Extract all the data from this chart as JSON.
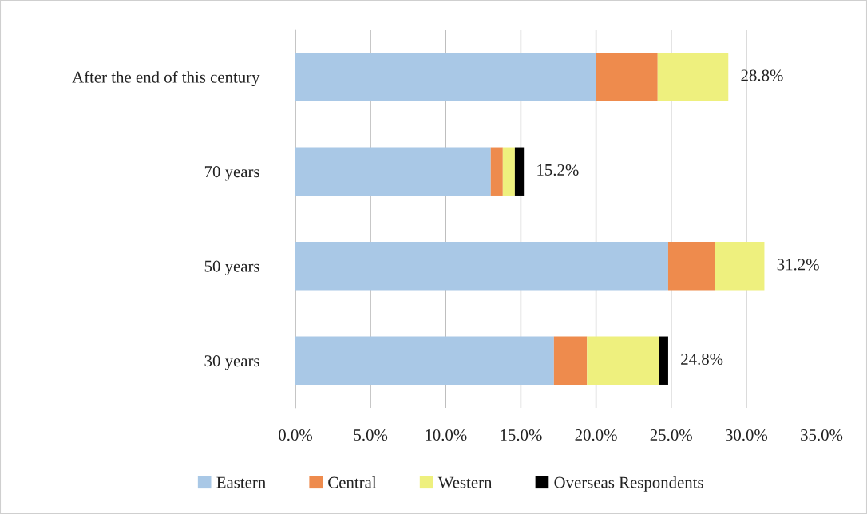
{
  "chart_data": {
    "type": "bar",
    "orientation": "horizontal",
    "stacked": true,
    "categories": [
      "After the end of this century",
      "70 years",
      "50 years",
      "30 years"
    ],
    "series": [
      {
        "name": "Eastern",
        "color": "#a9c8e6",
        "values": [
          20.0,
          13.0,
          24.8,
          17.2
        ]
      },
      {
        "name": "Central",
        "color": "#ee8b4d",
        "values": [
          4.1,
          0.8,
          3.1,
          2.2
        ]
      },
      {
        "name": "Western",
        "color": "#eef07e",
        "values": [
          4.7,
          0.8,
          3.3,
          4.8
        ]
      },
      {
        "name": "Overseas Respondents",
        "color": "#000000",
        "values": [
          null,
          0.6,
          null,
          0.6
        ]
      }
    ],
    "totals": [
      "28.8%",
      "15.2%",
      "31.2%",
      "24.8%"
    ],
    "xlim": [
      0,
      35
    ],
    "xticks": [
      {
        "value": 0,
        "label": "0.0%"
      },
      {
        "value": 5,
        "label": "5.0%"
      },
      {
        "value": 10,
        "label": "10.0%"
      },
      {
        "value": 15,
        "label": "15.0%"
      },
      {
        "value": 20,
        "label": "20.0%"
      },
      {
        "value": 25,
        "label": "25.0%"
      },
      {
        "value": 30,
        "label": "30.0%"
      },
      {
        "value": 35,
        "label": "35.0%"
      }
    ],
    "grid": "x",
    "legend": "bottom"
  }
}
